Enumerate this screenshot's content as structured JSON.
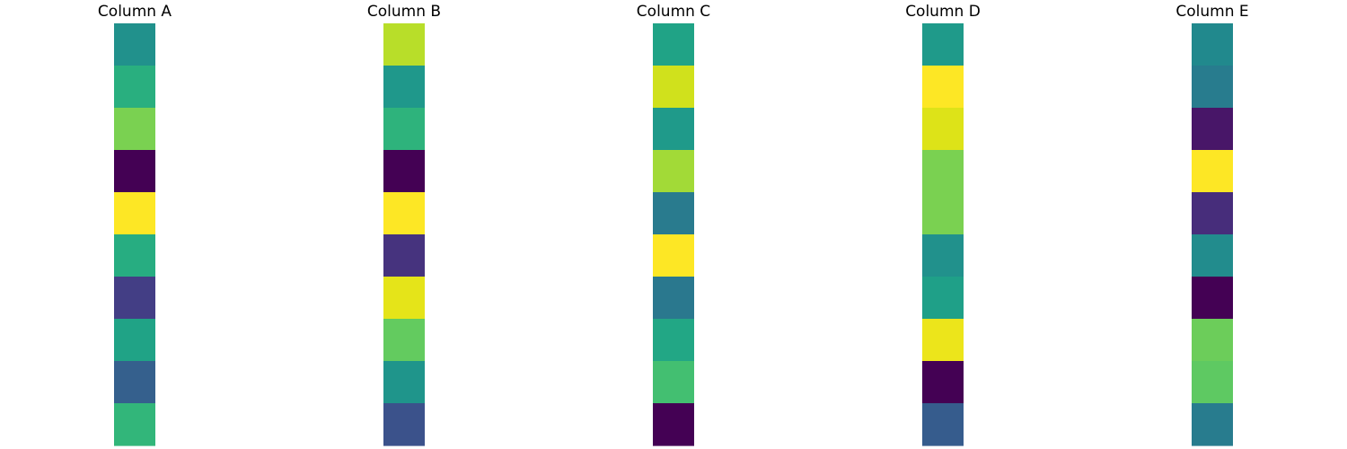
{
  "chart_data": {
    "type": "heatmap",
    "colormap": "viridis",
    "columns": [
      {
        "title": "Column A",
        "cells": [
          {
            "value": 0.5,
            "color": "#21918c"
          },
          {
            "value": 0.64,
            "color": "#29af7f"
          },
          {
            "value": 0.78,
            "color": "#7ad151"
          },
          {
            "value": 0.0,
            "color": "#440154"
          },
          {
            "value": 1.0,
            "color": "#fde725"
          },
          {
            "value": 0.63,
            "color": "#27ad81"
          },
          {
            "value": 0.2,
            "color": "#433e85"
          },
          {
            "value": 0.58,
            "color": "#20a386"
          },
          {
            "value": 0.35,
            "color": "#35608d"
          },
          {
            "value": 0.67,
            "color": "#32b67a"
          }
        ]
      },
      {
        "title": "Column B",
        "cells": [
          {
            "value": 0.91,
            "color": "#b8de29"
          },
          {
            "value": 0.5,
            "color": "#1f988b"
          },
          {
            "value": 0.67,
            "color": "#2eb37c"
          },
          {
            "value": 0.0,
            "color": "#440154"
          },
          {
            "value": 1.0,
            "color": "#fde725"
          },
          {
            "value": 0.18,
            "color": "#46337e"
          },
          {
            "value": 0.97,
            "color": "#e5e419"
          },
          {
            "value": 0.77,
            "color": "#63cb5f"
          },
          {
            "value": 0.49,
            "color": "#1f958b"
          },
          {
            "value": 0.28,
            "color": "#3b528b"
          }
        ]
      },
      {
        "title": "Column C",
        "cells": [
          {
            "value": 0.58,
            "color": "#20a386"
          },
          {
            "value": 0.95,
            "color": "#d0e11c"
          },
          {
            "value": 0.52,
            "color": "#1f9a8a"
          },
          {
            "value": 0.88,
            "color": "#a2da37"
          },
          {
            "value": 0.4,
            "color": "#297b8e"
          },
          {
            "value": 1.0,
            "color": "#fde725"
          },
          {
            "value": 0.41,
            "color": "#2a788e"
          },
          {
            "value": 0.62,
            "color": "#22a785"
          },
          {
            "value": 0.73,
            "color": "#43bf71"
          },
          {
            "value": 0.0,
            "color": "#440154"
          }
        ]
      },
      {
        "title": "Column D",
        "cells": [
          {
            "value": 0.52,
            "color": "#1f9a8a"
          },
          {
            "value": 1.0,
            "color": "#fde725"
          },
          {
            "value": 0.96,
            "color": "#dde318"
          },
          {
            "value": 0.78,
            "color": "#7ad151"
          },
          {
            "value": 0.78,
            "color": "#7ad151"
          },
          {
            "value": 0.5,
            "color": "#21918c"
          },
          {
            "value": 0.57,
            "color": "#1fa088"
          },
          {
            "value": 0.97,
            "color": "#ece51b"
          },
          {
            "value": 0.0,
            "color": "#440154"
          },
          {
            "value": 0.33,
            "color": "#365c8d"
          }
        ]
      },
      {
        "title": "Column E",
        "cells": [
          {
            "value": 0.47,
            "color": "#21898d"
          },
          {
            "value": 0.41,
            "color": "#287c8e"
          },
          {
            "value": 0.07,
            "color": "#481668"
          },
          {
            "value": 1.0,
            "color": "#fde725"
          },
          {
            "value": 0.13,
            "color": "#472d7b"
          },
          {
            "value": 0.46,
            "color": "#228c8d"
          },
          {
            "value": 0.0,
            "color": "#440154"
          },
          {
            "value": 0.76,
            "color": "#6ccd5a"
          },
          {
            "value": 0.75,
            "color": "#5ec962"
          },
          {
            "value": 0.42,
            "color": "#287c8e"
          }
        ]
      }
    ],
    "grid": false,
    "axes_visible": false,
    "legend": "none"
  }
}
